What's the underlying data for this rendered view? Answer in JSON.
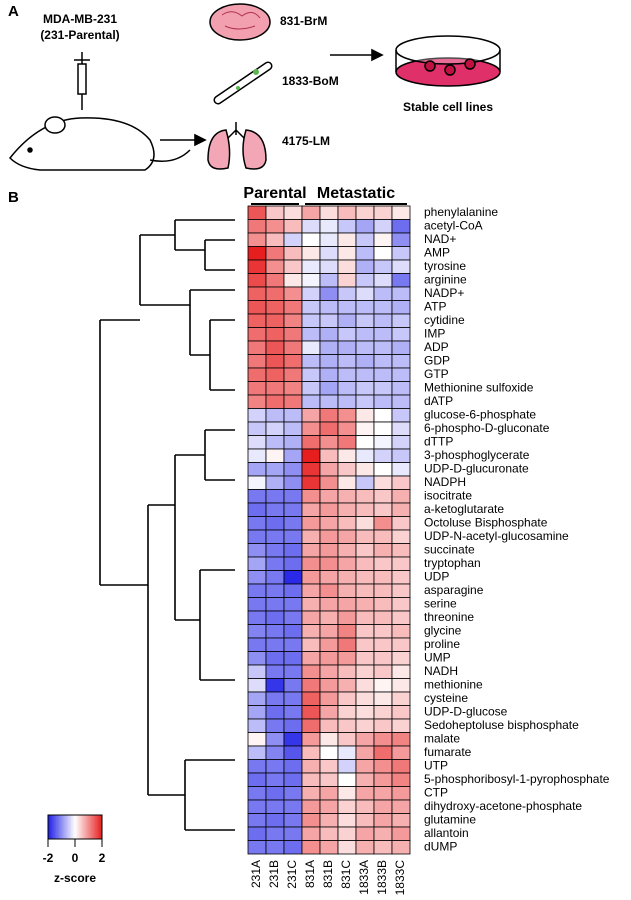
{
  "panel_a": {
    "panel_label": "A",
    "cell_line": "MDA-MB-231",
    "cell_line_sub": "(231-Parental)",
    "brain": "831-BrM",
    "bone": "1833-BoM",
    "lung": "4175-LM",
    "result": "Stable cell lines"
  },
  "chart_data": {
    "type": "heatmap",
    "panel_label": "B",
    "groups": [
      {
        "name": "Parental",
        "span": [
          0,
          2
        ]
      },
      {
        "name": "Metastatic",
        "span": [
          3,
          8
        ]
      }
    ],
    "columns": [
      "231A",
      "231B",
      "231C",
      "831A",
      "831B",
      "831C",
      "1833A",
      "1833B",
      "1833C"
    ],
    "rows": [
      "phenylalanine",
      "acetyl-CoA",
      "NAD+",
      "AMP",
      "tyrosine",
      "arginine",
      "NADP+",
      "ATP",
      "cytidine",
      "IMP",
      "ADP",
      "GDP",
      "GTP",
      "Methionine sulfoxide",
      "dATP",
      "glucose-6-phosphate",
      "6-phospho-D-gluconate",
      "dTTP",
      "3-phosphoglycerate",
      "UDP-D-glucuronate",
      "NADPH",
      "isocitrate",
      "a-ketoglutarate",
      "Octoluse Bisphosphate",
      "UDP-N-acetyl-glucosamine",
      "succinate",
      "tryptophan",
      "UDP",
      "asparagine",
      "serine",
      "threonine",
      "glycine",
      "proline",
      "UMP",
      "NADH",
      "methionine",
      "cysteine",
      "UDP-D-glucose",
      "Sedoheptoluse bisphosphate",
      "malate",
      "fumarate",
      "UTP",
      "5-phosphoribosyl-1-pyrophosphate",
      "CTP",
      "dihydroxy-acetone-phosphate",
      "glutamine",
      "allantoin",
      "dUMP"
    ],
    "values": [
      [
        1.5,
        0.5,
        0.3,
        0.8,
        0.3,
        0.6,
        0.4,
        0.4,
        0.2
      ],
      [
        1.2,
        1.0,
        0.6,
        -0.3,
        -0.2,
        -0.5,
        -0.8,
        -0.4,
        -1.3
      ],
      [
        1.0,
        0.6,
        -0.4,
        0,
        -0.2,
        0.2,
        -0.5,
        0.1,
        -1.0
      ],
      [
        2,
        1.2,
        0.6,
        0.2,
        -0.3,
        0.2,
        -0.6,
        0,
        -0.5
      ],
      [
        1.8,
        1.0,
        0.5,
        -0.2,
        -0.3,
        0.3,
        -0.7,
        -0.5,
        -0.3
      ],
      [
        1.6,
        1.2,
        0.2,
        -0.1,
        -0.6,
        0.4,
        -0.5,
        -0.3,
        -1.2
      ],
      [
        1.4,
        1.3,
        1.0,
        -0.4,
        -1.0,
        -0.5,
        -0.3,
        -0.6,
        -0.6
      ],
      [
        1.5,
        1.4,
        1.2,
        -0.5,
        -0.6,
        -0.6,
        -0.6,
        -0.6,
        -0.7
      ],
      [
        1.4,
        1.4,
        1.1,
        -0.5,
        -0.5,
        -0.7,
        -0.5,
        -0.6,
        -0.5
      ],
      [
        1.3,
        1.4,
        1.2,
        -0.6,
        -0.7,
        -0.5,
        -0.6,
        -0.6,
        -0.5
      ],
      [
        1.2,
        1.5,
        1.2,
        -0.2,
        -0.7,
        -0.7,
        -0.6,
        -0.6,
        -0.7
      ],
      [
        1.2,
        1.5,
        1.3,
        -0.6,
        -0.7,
        -0.6,
        -0.7,
        -0.6,
        -0.6
      ],
      [
        1.3,
        1.4,
        1.2,
        -0.5,
        -0.7,
        -0.6,
        -0.6,
        -0.6,
        -0.6
      ],
      [
        1.2,
        1.2,
        1.1,
        -0.5,
        -0.8,
        -0.6,
        -0.5,
        -0.5,
        -0.6
      ],
      [
        1.1,
        1.3,
        1.2,
        -0.6,
        -0.6,
        -0.6,
        -0.5,
        -0.6,
        -0.6
      ],
      [
        -0.4,
        -0.6,
        -0.6,
        0.8,
        1.2,
        1.0,
        0.2,
        0.0,
        -0.5
      ],
      [
        -0.5,
        -0.4,
        -0.6,
        1.0,
        1.3,
        1.0,
        0.1,
        0.0,
        -0.3
      ],
      [
        -0.3,
        -0.6,
        -0.7,
        1.3,
        1.0,
        1.2,
        0.0,
        -0.1,
        -0.4
      ],
      [
        -0.2,
        0.1,
        -0.8,
        2.0,
        0.6,
        0.2,
        -0.2,
        -0.4,
        -0.5
      ],
      [
        -0.8,
        -0.8,
        -1.0,
        1.8,
        0.8,
        0.5,
        0.2,
        0.0,
        -0.2
      ],
      [
        -0.1,
        -0.7,
        -1.0,
        1.8,
        1.0,
        0.2,
        -0.5,
        0.3,
        0.5
      ],
      [
        -1.2,
        -1.2,
        -1.2,
        1.0,
        0.8,
        0.7,
        0.6,
        0.5,
        0.7
      ],
      [
        -1.3,
        -1.2,
        -1.2,
        0.8,
        0.9,
        0.7,
        0.6,
        0.5,
        0.7
      ],
      [
        -1.2,
        -1.3,
        -1.2,
        0.9,
        0.8,
        0.6,
        0.3,
        1.0,
        0.5
      ],
      [
        -1.2,
        -1.2,
        -1.2,
        0.7,
        0.9,
        0.8,
        0.6,
        0.6,
        0.4
      ],
      [
        -1.0,
        -1.2,
        -1.3,
        0.8,
        0.9,
        0.7,
        0.5,
        0.7,
        0.6
      ],
      [
        -0.8,
        -1.2,
        -1.3,
        1.0,
        1.0,
        0.8,
        0.6,
        0.5,
        0.5
      ],
      [
        -1.0,
        -1.2,
        -1.9,
        0.9,
        0.8,
        0.7,
        0.6,
        0.6,
        0.5
      ],
      [
        -1.2,
        -1.2,
        -1.3,
        0.8,
        1.0,
        0.7,
        0.6,
        0.6,
        0.5
      ],
      [
        -1.2,
        -1.2,
        -1.2,
        0.7,
        0.8,
        0.8,
        0.7,
        0.6,
        0.5
      ],
      [
        -1.2,
        -1.3,
        -1.2,
        0.8,
        0.7,
        0.9,
        0.6,
        0.6,
        0.5
      ],
      [
        -1.1,
        -1.2,
        -1.3,
        0.7,
        0.8,
        1.1,
        0.5,
        0.5,
        0.6
      ],
      [
        -1.2,
        -1.2,
        -1.2,
        0.6,
        0.9,
        1.2,
        0.5,
        0.5,
        0.5
      ],
      [
        -1.0,
        -1.3,
        -1.3,
        0.8,
        0.9,
        0.9,
        0.5,
        0.5,
        0.4
      ],
      [
        -0.5,
        -1.2,
        -1.2,
        1.0,
        0.8,
        0.6,
        0.4,
        0.5,
        0.2
      ],
      [
        -0.3,
        -1.8,
        -1.2,
        1.2,
        0.9,
        0.7,
        0.3,
        0.1,
        0.2
      ],
      [
        -0.8,
        -1.2,
        -1.2,
        1.4,
        0.9,
        0.5,
        0.3,
        0.2,
        0.4
      ],
      [
        -0.8,
        -1.3,
        -1.2,
        1.5,
        0.8,
        0.4,
        0.3,
        0.4,
        0.5
      ],
      [
        -0.6,
        -1.2,
        -1.3,
        1.3,
        0.6,
        0.5,
        0.4,
        0.5,
        0.4
      ],
      [
        0.1,
        -1.0,
        -1.8,
        0.9,
        0.2,
        0.5,
        0.8,
        1.0,
        1.1
      ],
      [
        -0.6,
        -1.1,
        -1.5,
        0.6,
        0.0,
        -0.2,
        0.8,
        1.3,
        0.9
      ],
      [
        -1.2,
        -1.2,
        -1.3,
        0.7,
        0.5,
        -0.4,
        0.8,
        1.0,
        1.2
      ],
      [
        -1.3,
        -1.2,
        -1.3,
        0.6,
        0.5,
        0.0,
        0.7,
        0.9,
        1.1
      ],
      [
        -1.2,
        -1.3,
        -1.2,
        0.7,
        0.8,
        0.2,
        0.8,
        0.8,
        0.9
      ],
      [
        -1.2,
        -1.2,
        -1.2,
        0.9,
        0.8,
        0.4,
        0.6,
        0.8,
        0.8
      ],
      [
        -1.2,
        -1.3,
        -1.2,
        1.0,
        0.7,
        0.3,
        0.6,
        0.8,
        0.7
      ],
      [
        -1.3,
        -1.2,
        -1.2,
        0.8,
        0.6,
        0.4,
        0.8,
        0.7,
        0.9
      ],
      [
        -1.2,
        -1.2,
        -1.3,
        1.0,
        0.8,
        0.3,
        0.7,
        0.6,
        0.7
      ]
    ],
    "clim": [
      -2,
      2
    ],
    "cticks": [
      -2,
      0,
      2
    ],
    "clabel": "z-score",
    "colors": [
      "#1e1ee6",
      "#ffffff",
      "#e61e1e"
    ]
  }
}
